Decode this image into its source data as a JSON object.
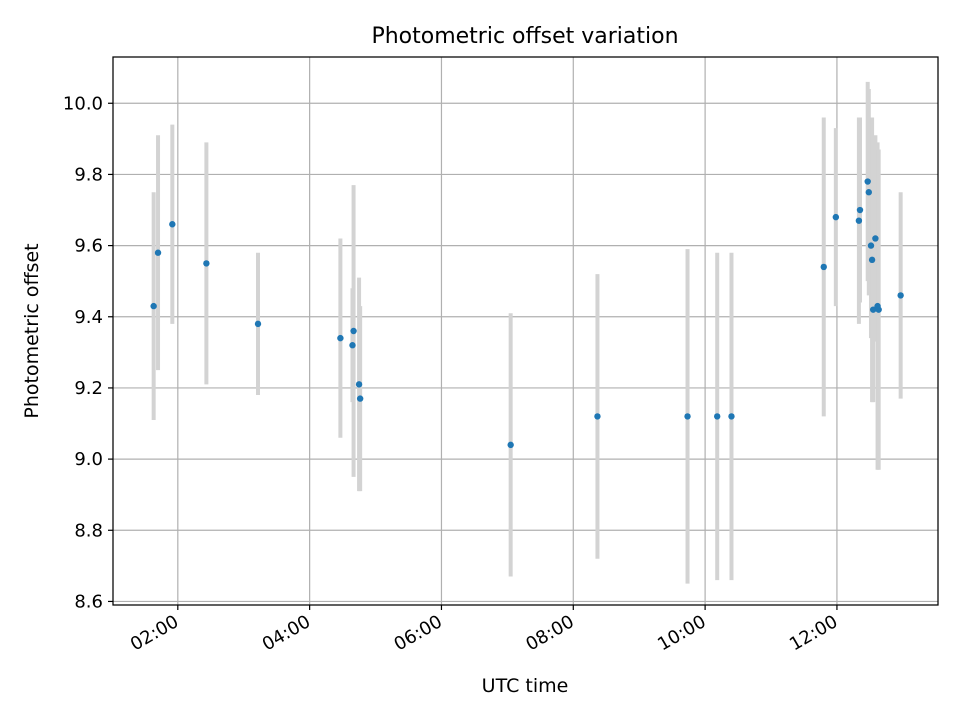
{
  "chart_data": {
    "type": "scatter",
    "title": "Photometric offset variation",
    "xlabel": "UTC time",
    "ylabel": "Photometric offset",
    "xlim": [
      "01:01",
      "13:32"
    ],
    "ylim": [
      8.59,
      10.13
    ],
    "x_ticks": [
      "02:00",
      "04:00",
      "06:00",
      "08:00",
      "10:00",
      "12:00"
    ],
    "y_ticks": [
      8.6,
      8.8,
      9.0,
      9.2,
      9.4,
      9.6,
      9.8,
      10.0
    ],
    "y_tick_labels": [
      "8.6",
      "8.8",
      "9.0",
      "9.2",
      "9.4",
      "9.6",
      "9.8",
      "10.0"
    ],
    "grid": true,
    "colors": {
      "point": "#1f77b4",
      "errorbar": "#d3d3d3",
      "grid": "#b0b0b0",
      "axes": "#000000"
    },
    "series": [
      {
        "points": [
          {
            "x": "01:38",
            "y": 9.43,
            "yerr": 0.32
          },
          {
            "x": "01:42",
            "y": 9.58,
            "yerr": 0.33
          },
          {
            "x": "01:55",
            "y": 9.66,
            "yerr": 0.28
          },
          {
            "x": "02:26",
            "y": 9.55,
            "yerr": 0.34
          },
          {
            "x": "03:13",
            "y": 9.38,
            "yerr": 0.2
          },
          {
            "x": "04:28",
            "y": 9.34,
            "yerr": 0.28
          },
          {
            "x": "04:39",
            "y": 9.32,
            "yerr": 0.16
          },
          {
            "x": "04:40",
            "y": 9.36,
            "yerr": 0.41
          },
          {
            "x": "04:45",
            "y": 9.21,
            "yerr": 0.3
          },
          {
            "x": "04:46",
            "y": 9.17,
            "yerr": 0.26
          },
          {
            "x": "07:03",
            "y": 9.04,
            "yerr": 0.37
          },
          {
            "x": "08:22",
            "y": 9.12,
            "yerr": 0.4
          },
          {
            "x": "09:44",
            "y": 9.12,
            "yerr": 0.47
          },
          {
            "x": "10:11",
            "y": 9.12,
            "yerr": 0.46
          },
          {
            "x": "10:24",
            "y": 9.12,
            "yerr": 0.46
          },
          {
            "x": "11:48",
            "y": 9.54,
            "yerr": 0.42
          },
          {
            "x": "11:59",
            "y": 9.68,
            "yerr": 0.25
          },
          {
            "x": "12:20",
            "y": 9.67,
            "yerr": 0.29
          },
          {
            "x": "12:21",
            "y": 9.7,
            "yerr": 0.26
          },
          {
            "x": "12:28",
            "y": 9.78,
            "yerr": 0.28
          },
          {
            "x": "12:29",
            "y": 9.75,
            "yerr": 0.29
          },
          {
            "x": "12:31",
            "y": 9.6,
            "yerr": 0.26
          },
          {
            "x": "12:32",
            "y": 9.56,
            "yerr": 0.4
          },
          {
            "x": "12:33",
            "y": 9.42,
            "yerr": 0.26
          },
          {
            "x": "12:35",
            "y": 9.62,
            "yerr": 0.29
          },
          {
            "x": "12:37",
            "y": 9.43,
            "yerr": 0.46
          },
          {
            "x": "12:38",
            "y": 9.42,
            "yerr": 0.45
          },
          {
            "x": "12:58",
            "y": 9.46,
            "yerr": 0.29
          }
        ]
      }
    ]
  }
}
